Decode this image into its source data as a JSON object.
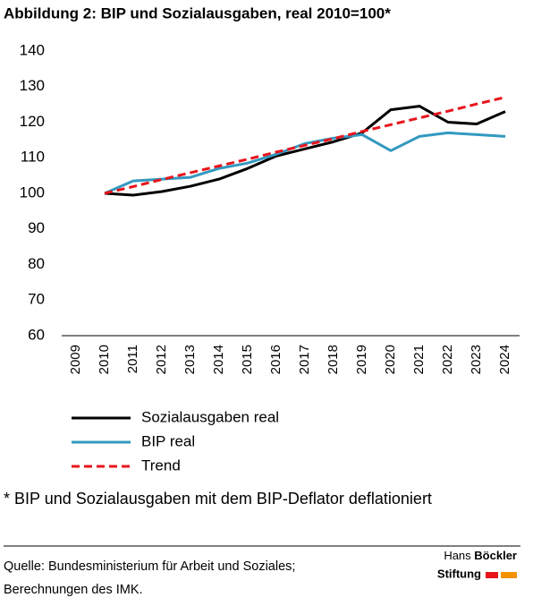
{
  "chart_data": {
    "type": "line",
    "title": "Abbildung 2: BIP und Sozialausgaben, real 2010=100*",
    "categories": [
      "2009",
      "2010",
      "2011",
      "2012",
      "2013",
      "2014",
      "2015",
      "2016",
      "2017",
      "2018",
      "2019",
      "2020",
      "2021",
      "2022",
      "2023",
      "2024"
    ],
    "series": [
      {
        "name": "Sozialausgaben real",
        "color": "#000000",
        "dashed": false,
        "values": [
          null,
          100,
          99.5,
          100.5,
          102,
          104,
          107,
          110.5,
          112.5,
          114.5,
          117,
          123.5,
          124.5,
          120,
          119.5,
          123
        ]
      },
      {
        "name": "BIP real",
        "color": "#3399c0",
        "dashed": false,
        "values": [
          null,
          100,
          103.5,
          104,
          104.5,
          107,
          108.5,
          111,
          114,
          115.5,
          116.5,
          112,
          116,
          117,
          116.5,
          116
        ]
      },
      {
        "name": "Trend",
        "color": "#e8141c",
        "dashed": true,
        "values": [
          null,
          100,
          101.9,
          103.9,
          105.8,
          107.7,
          109.6,
          111.6,
          113.5,
          115.4,
          117.4,
          119.3,
          121.2,
          123.1,
          125.1,
          127
        ]
      }
    ],
    "ylim": [
      60,
      140
    ],
    "yticks": [
      60,
      70,
      80,
      90,
      100,
      110,
      120,
      130,
      140
    ],
    "grid": false
  },
  "footnote": "* BIP und Sozialausgaben mit dem BIP-Deflator deflationiert",
  "source": [
    "Quelle: Bundesministerium für Arbeit und Soziales;",
    "Berechnungen des IMK."
  ],
  "logo": {
    "line1_light": "Hans",
    "line1_bold": "Böckler",
    "line2": "Stiftung"
  }
}
